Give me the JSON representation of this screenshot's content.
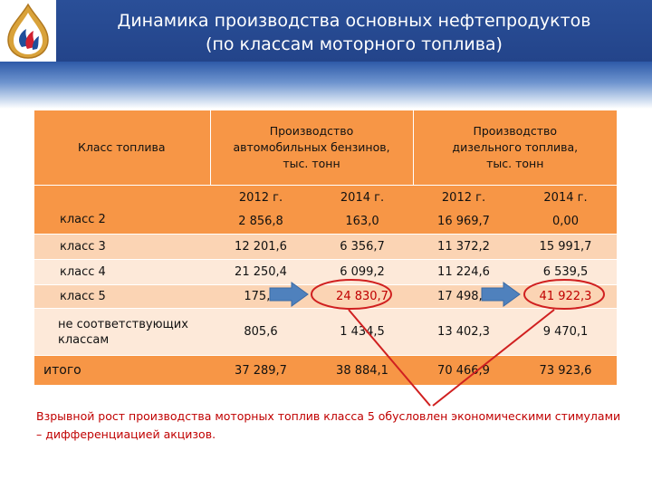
{
  "header": {
    "title_line1": "Динамика производства основных нефтепродуктов",
    "title_line2": "(по классам моторного топлива)"
  },
  "logo": {
    "icon": "drop-flame-logo-icon"
  },
  "table": {
    "col_fuel": "Класс топлива",
    "col_gasoline": "Производство автомобильных бензинов, тыс. тонн",
    "col_diesel": "Производство дизельного топлива, тыс. тонн",
    "years": [
      "2012 г.",
      "2014 г.",
      "2012 г.",
      "2014 г."
    ],
    "rows": [
      {
        "label": "класс 2",
        "values": [
          "2 856,8",
          "163,0",
          "16 969,7",
          "0,00"
        ]
      },
      {
        "label": "класс 3",
        "values": [
          "12 201,6",
          "6 356,7",
          "11 372,2",
          "15 991,7"
        ]
      },
      {
        "label": "класс 4",
        "values": [
          "21 250,4",
          "6 099,2",
          "11 224,6",
          "6 539,5"
        ]
      },
      {
        "label": "класс 5",
        "values": [
          "175,3",
          "24 830,7",
          "17 498,1",
          "41 922,3"
        ]
      },
      {
        "label": "не соответствующих классам",
        "values": [
          "805,6",
          "1 434,5",
          "13 402,3",
          "9 470,1"
        ]
      },
      {
        "label": "итого",
        "values": [
          "37 289,7",
          "38 884,1",
          "70 466,9",
          "73 923,6"
        ]
      }
    ]
  },
  "footer": {
    "text": "Взрывной рост производства моторных топлив класса 5 обусловлен экономическими стимулами – дифференциацией акцизов."
  },
  "colors": {
    "header_blue": "#2a4f98",
    "header_orange": "#f79646",
    "row_dark": "#fbd4b4",
    "row_light": "#fde9d9",
    "accent_red": "#c00000",
    "arrow_blue": "#4f81bd"
  }
}
